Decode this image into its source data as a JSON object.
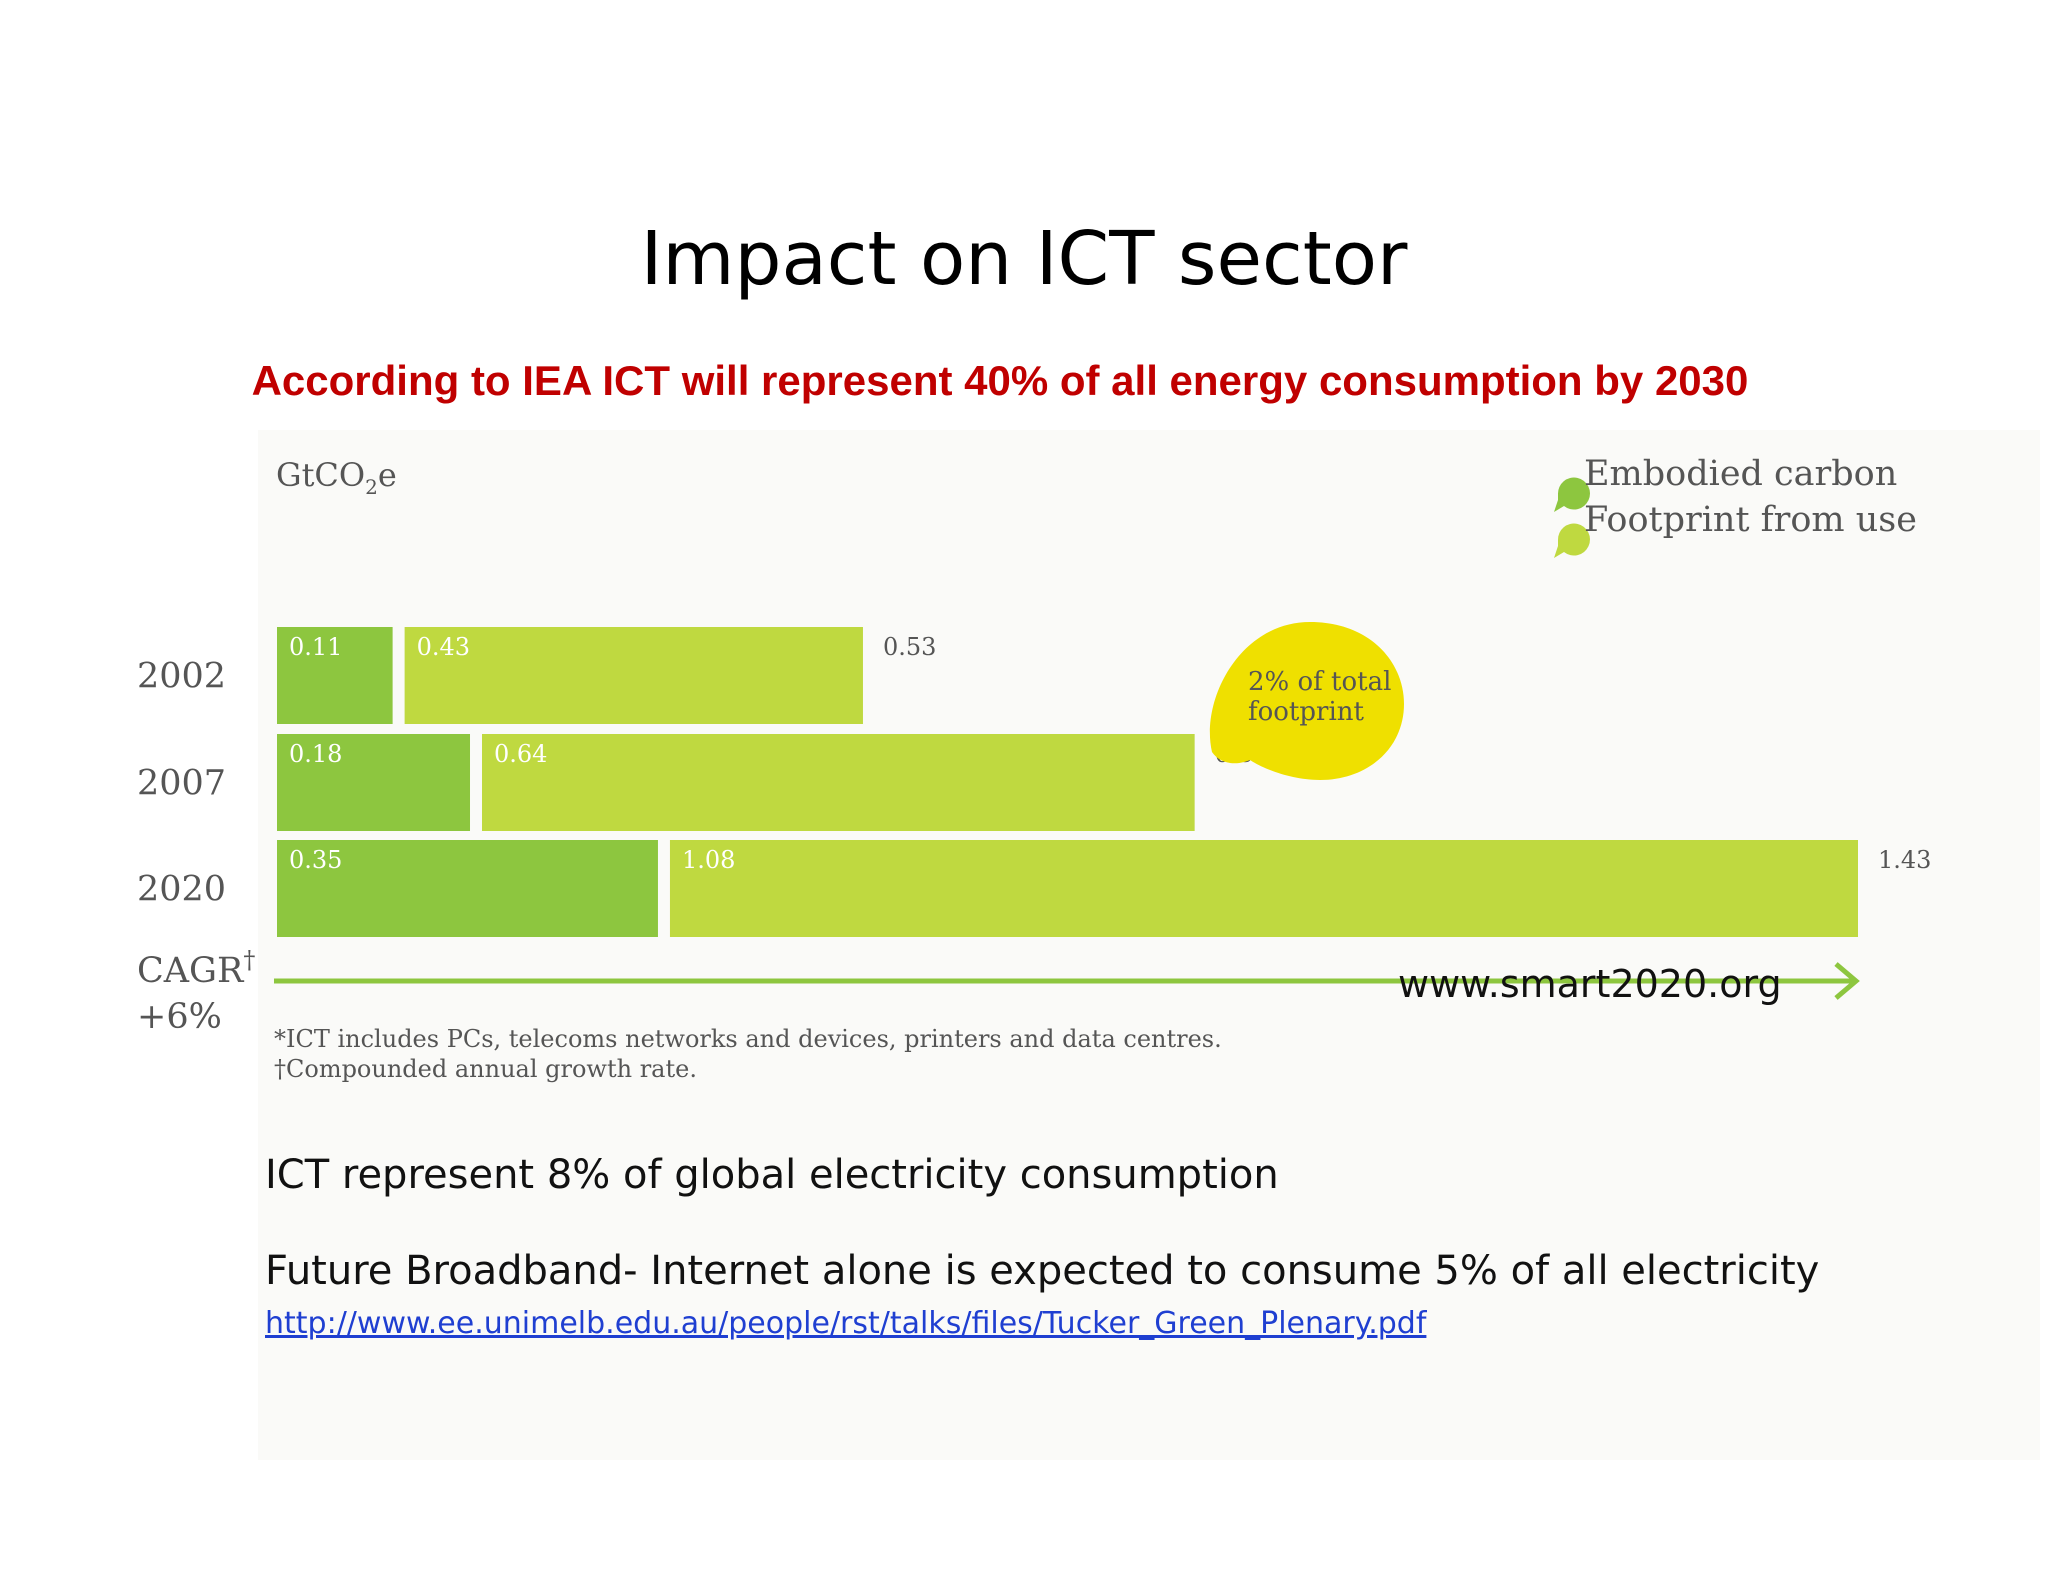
{
  "slide": {
    "title": "Impact on ICT sector",
    "subtitle": "According to IEA ICT will represent 40% of all energy consumption by 2030",
    "subtitle_color": "#c00000",
    "source_url": "www.smart2020.org",
    "body_lines": [
      "ICT represent  8% of global electricity consumption",
      "Future Broadband- Internet alone is expected to consume 5% of all electricity"
    ],
    "reference_link": "http://www.ee.unimelb.edu.au/people/rst/talks/files/Tucker_Green_Plenary.pdf"
  },
  "chart_data": {
    "type": "bar",
    "orientation": "horizontal",
    "stacked": true,
    "unit_label": "GtCO",
    "unit_subscript": "2",
    "unit_suffix": "e",
    "categories": [
      "2002",
      "2007",
      "2020"
    ],
    "series": [
      {
        "name": "Embodied carbon",
        "values": [
          0.11,
          0.18,
          0.35
        ],
        "labels": [
          "0.11",
          "0.18",
          "0.35"
        ],
        "color": "#8dc63f"
      },
      {
        "name": "Footprint from use",
        "values": [
          0.43,
          0.64,
          1.08
        ],
        "labels": [
          "0.43",
          "0.64",
          "1.08"
        ],
        "color": "#bfd940"
      }
    ],
    "totals": [
      0.53,
      0.83,
      1.43
    ],
    "total_labels": [
      "0.53",
      "0.83",
      "1.43"
    ],
    "xlim": [
      0,
      1.43
    ],
    "legend_position": "top-right",
    "grid": false,
    "callout": {
      "line1": "2% of total",
      "line2": "footprint",
      "color": "#efe000"
    },
    "cagr_label": "CAGR",
    "cagr_dagger": "†",
    "cagr_value": "+6%",
    "arrow_color": "#8dc63f",
    "footnotes": [
      "*ICT includes PCs, telecoms networks and devices, printers and data centres.",
      "†Compounded annual growth rate."
    ]
  }
}
